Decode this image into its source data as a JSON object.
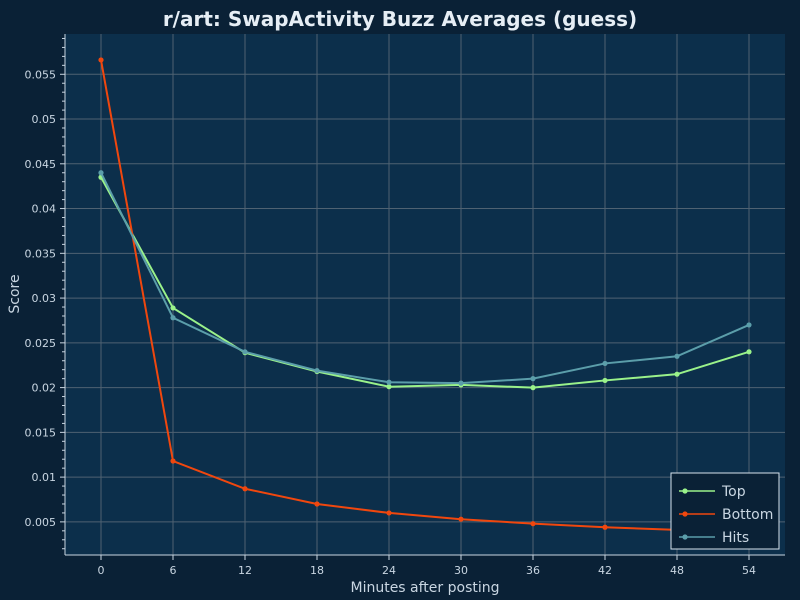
{
  "chart_data": {
    "type": "line",
    "title": "r/art: SwapActivity Buzz Averages (guess)",
    "xlabel": "Minutes after posting",
    "ylabel": "Score",
    "x": [
      0,
      6,
      12,
      18,
      24,
      30,
      36,
      42,
      48,
      54
    ],
    "xlim": [
      -3,
      57
    ],
    "ylim": [
      0.0013,
      0.0595
    ],
    "xticks": [
      0,
      6,
      12,
      18,
      24,
      30,
      36,
      42,
      48,
      54
    ],
    "yticks": [
      0.005,
      0.01,
      0.015,
      0.02,
      0.025,
      0.03,
      0.035,
      0.04,
      0.045,
      0.05,
      0.055
    ],
    "ytick_labels": [
      "0.005",
      "0.01",
      "0.015",
      "0.02",
      "0.025",
      "0.03",
      "0.035",
      "0.04",
      "0.045",
      "0.05",
      "0.055"
    ],
    "grid": true,
    "legend_position": "bottom-right",
    "series": [
      {
        "name": "Top",
        "color": "#9af28a",
        "values": [
          0.0435,
          0.0289,
          0.0239,
          0.0218,
          0.0201,
          0.0203,
          0.02,
          0.0208,
          0.0215,
          0.024
        ]
      },
      {
        "name": "Bottom",
        "color": "#f0470e",
        "values": [
          0.0566,
          0.0118,
          0.0087,
          0.007,
          0.006,
          0.0053,
          0.0048,
          0.0044,
          0.0041,
          0.0039
        ]
      },
      {
        "name": "Hits",
        "color": "#5b9eaa",
        "values": [
          0.044,
          0.0278,
          0.024,
          0.0219,
          0.0206,
          0.0205,
          0.021,
          0.0227,
          0.0235,
          0.027
        ]
      }
    ]
  },
  "colors": {
    "background": "#0a2136",
    "plot_background": "#0c2f4b",
    "grid": "#4f6272",
    "axis": "#c9d6e2"
  }
}
